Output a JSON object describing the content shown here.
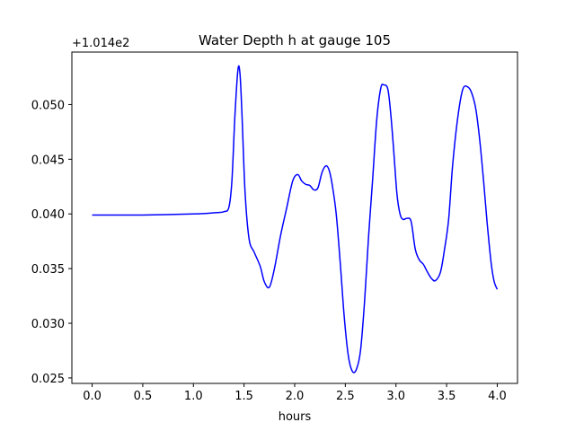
{
  "chart_data": {
    "type": "line",
    "title": "Water Depth h at gauge 105",
    "xlabel": "hours",
    "ylabel": "",
    "offset_label": "+1.014e2",
    "xlim": [
      -0.2,
      4.2
    ],
    "ylim": [
      0.0245,
      0.0548
    ],
    "x_ticks": [
      0.0,
      0.5,
      1.0,
      1.5,
      2.0,
      2.5,
      3.0,
      3.5,
      4.0
    ],
    "x_tick_labels": [
      "0.0",
      "0.5",
      "1.0",
      "1.5",
      "2.0",
      "2.5",
      "3.0",
      "3.5",
      "4.0"
    ],
    "y_ticks": [
      0.025,
      0.03,
      0.035,
      0.04,
      0.045,
      0.05
    ],
    "y_tick_labels": [
      "0.025",
      "0.030",
      "0.035",
      "0.040",
      "0.045",
      "0.050"
    ],
    "grid": false,
    "series": [
      {
        "color": "#0000ff",
        "x": [
          0.0,
          0.5,
          1.0,
          1.2,
          1.3,
          1.35,
          1.38,
          1.41,
          1.44,
          1.46,
          1.48,
          1.51,
          1.55,
          1.6,
          1.66,
          1.7,
          1.75,
          1.8,
          1.86,
          1.92,
          1.98,
          2.03,
          2.07,
          2.11,
          2.15,
          2.19,
          2.23,
          2.27,
          2.31,
          2.34,
          2.37,
          2.41,
          2.45,
          2.49,
          2.53,
          2.57,
          2.61,
          2.65,
          2.69,
          2.73,
          2.77,
          2.81,
          2.85,
          2.88,
          2.92,
          2.95,
          2.98,
          3.01,
          3.04,
          3.07,
          3.11,
          3.15,
          3.19,
          3.23,
          3.27,
          3.31,
          3.35,
          3.39,
          3.44,
          3.48,
          3.52,
          3.56,
          3.61,
          3.66,
          3.71,
          3.75,
          3.79,
          3.83,
          3.87,
          3.9,
          3.94,
          3.97,
          4.0
        ],
        "y": [
          0.0399,
          0.0399,
          0.04,
          0.0401,
          0.0402,
          0.0406,
          0.043,
          0.049,
          0.0532,
          0.0528,
          0.049,
          0.042,
          0.0377,
          0.0365,
          0.0352,
          0.0338,
          0.0333,
          0.035,
          0.038,
          0.0405,
          0.043,
          0.0436,
          0.043,
          0.0427,
          0.0426,
          0.0422,
          0.0424,
          0.0438,
          0.0444,
          0.044,
          0.0427,
          0.04,
          0.0355,
          0.0305,
          0.027,
          0.0256,
          0.0258,
          0.0275,
          0.032,
          0.038,
          0.0432,
          0.0486,
          0.0515,
          0.0518,
          0.0514,
          0.049,
          0.0455,
          0.0418,
          0.04,
          0.0395,
          0.0396,
          0.0393,
          0.0368,
          0.0358,
          0.0354,
          0.0347,
          0.0341,
          0.0339,
          0.0347,
          0.0368,
          0.0395,
          0.0445,
          0.0488,
          0.0514,
          0.0516,
          0.051,
          0.0495,
          0.0465,
          0.0425,
          0.0392,
          0.0355,
          0.0338,
          0.0331
        ]
      }
    ]
  }
}
